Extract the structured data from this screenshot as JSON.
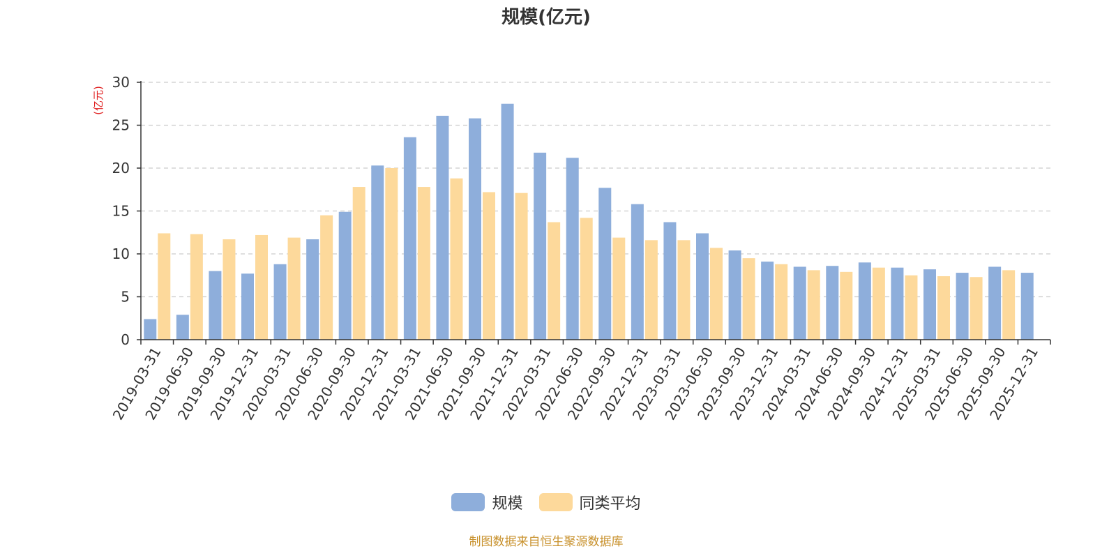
{
  "title": "规模(亿元)",
  "source_note": "制图数据来自恒生聚源数据库",
  "colors": {
    "series_0": "#8eaedb",
    "series_1": "#fdd99b",
    "y_unit_label": "#e02020"
  },
  "chart_data": {
    "type": "bar",
    "title": "规模(亿元)",
    "xlabel": "",
    "ylabel": "(亿元)",
    "ylim": [
      0,
      30
    ],
    "yticks": [
      0,
      5,
      10,
      15,
      20,
      25,
      30
    ],
    "grid": true,
    "legend_position": "bottom-center",
    "categories": [
      "2019-03-31",
      "2019-06-30",
      "2019-09-30",
      "2019-12-31",
      "2020-03-31",
      "2020-06-30",
      "2020-09-30",
      "2020-12-31",
      "2021-03-31",
      "2021-06-30",
      "2021-09-30",
      "2021-12-31",
      "2022-03-31",
      "2022-06-30",
      "2022-09-30",
      "2022-12-31",
      "2023-03-31",
      "2023-06-30",
      "2023-09-30",
      "2023-12-31",
      "2024-03-31",
      "2024-06-30",
      "2024-09-30",
      "2024-12-31",
      "2025-03-31",
      "2025-06-30",
      "2025-09-30",
      "2025-12-31"
    ],
    "series": [
      {
        "name": "规模",
        "values": [
          2.4,
          2.9,
          8.0,
          7.7,
          8.8,
          11.7,
          14.9,
          20.3,
          23.6,
          26.1,
          25.8,
          27.5,
          21.8,
          21.2,
          17.7,
          15.8,
          13.7,
          12.4,
          10.4,
          9.1,
          8.5,
          8.6,
          9.0,
          8.4,
          8.2,
          7.8,
          8.5,
          7.8
        ]
      },
      {
        "name": "同类平均",
        "values": [
          12.4,
          12.3,
          11.7,
          12.2,
          11.9,
          14.5,
          17.8,
          20.0,
          17.8,
          18.8,
          17.2,
          17.1,
          13.7,
          14.2,
          11.9,
          11.6,
          11.6,
          10.7,
          9.5,
          8.8,
          8.1,
          7.9,
          8.4,
          7.5,
          7.4,
          7.3,
          8.1,
          null
        ]
      }
    ]
  }
}
